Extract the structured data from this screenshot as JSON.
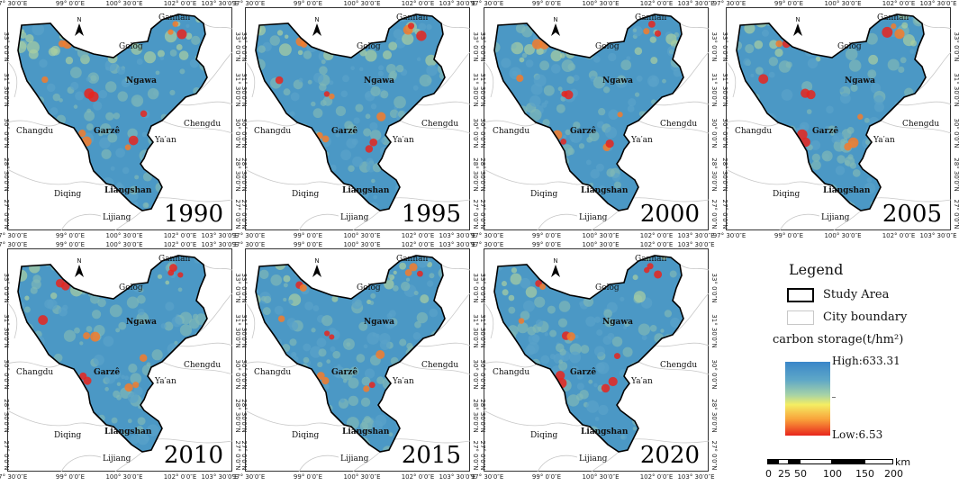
{
  "maps": [
    {
      "year": "1990"
    },
    {
      "year": "1995"
    },
    {
      "year": "2000"
    },
    {
      "year": "2005"
    },
    {
      "year": "2010"
    },
    {
      "year": "2015"
    },
    {
      "year": "2020"
    }
  ],
  "lon_ticks": [
    "97° 30′0″E",
    "99° 0′0″E",
    "100° 30′0″E",
    "102° 0′0″E",
    "103° 30′0″E"
  ],
  "lat_ticks": [
    "33° 0′0″N",
    "31° 30′0″N",
    "30° 0′0″N",
    "28° 30′0″N",
    "27° 0′0″N"
  ],
  "north_label": "N",
  "cities": {
    "gannan": "Gannan",
    "golog": "Golog",
    "ngawa": "Ngawa",
    "chengdu": "Chengdu",
    "changdu": "Changdu",
    "garze": "Garzê",
    "yaan": "Ya′an",
    "diqing": "Diqing",
    "liangshan": "Liangshan",
    "lijiang": "Lijiang"
  },
  "legend": {
    "title": "Legend",
    "study_area": "Study Area",
    "city_boundary": "City boundary",
    "carbon_title": "carbon storage(t/hm²)",
    "high": "High:633.31",
    "low": "Low:6.53",
    "colors": {
      "high": "#3a86c9",
      "mid": "#f4ee63",
      "low": "#e8251d"
    }
  },
  "scale_bar": {
    "unit": "km",
    "labels": [
      "0",
      "25",
      "50",
      "100",
      "150",
      "200"
    ]
  }
}
